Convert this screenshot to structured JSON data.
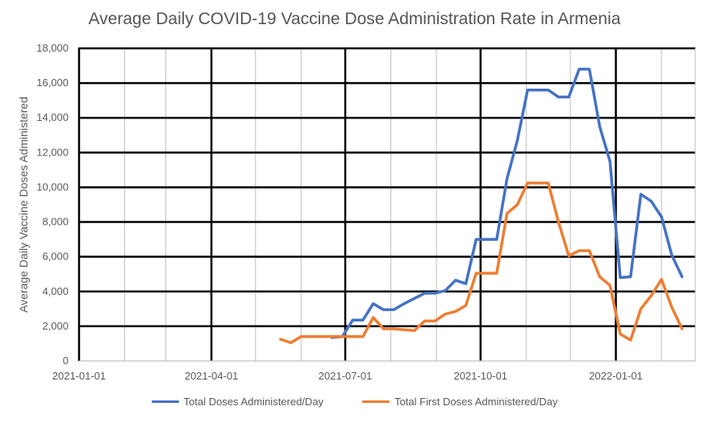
{
  "chart_data": {
    "type": "line",
    "title": "Average Daily COVID-19 Vaccine Dose Administration Rate in Armenia",
    "ylabel": "Average Daily Vaccine Doses Administered",
    "xlabel": "",
    "ylim": [
      0,
      18000
    ],
    "yticks": [
      0,
      2000,
      4000,
      6000,
      8000,
      10000,
      12000,
      14000,
      16000,
      18000
    ],
    "ytick_labels": [
      "0",
      "2,000",
      "4,000",
      "6,000",
      "8,000",
      "10,000",
      "12,000",
      "14,000",
      "16,000",
      "18,000"
    ],
    "xlim": [
      "2021-01-01",
      "2022-02-24"
    ],
    "xticks": [
      "2021-01-01",
      "2021-04-01",
      "2021-07-01",
      "2021-10-01",
      "2022-01-01"
    ],
    "grid": true,
    "legend_position": "bottom",
    "series": [
      {
        "name": "Total Doses Administered/Day",
        "color": "#4472C4",
        "points": [
          [
            "2021-06-22",
            1350
          ],
          [
            "2021-06-29",
            1400
          ],
          [
            "2021-07-06",
            2350
          ],
          [
            "2021-07-13",
            2350
          ],
          [
            "2021-07-20",
            3300
          ],
          [
            "2021-07-27",
            2950
          ],
          [
            "2021-08-03",
            2950
          ],
          [
            "2021-08-10",
            3300
          ],
          [
            "2021-08-17",
            3600
          ],
          [
            "2021-08-24",
            3900
          ],
          [
            "2021-08-31",
            3900
          ],
          [
            "2021-09-07",
            4050
          ],
          [
            "2021-09-14",
            4650
          ],
          [
            "2021-09-21",
            4450
          ],
          [
            "2021-09-28",
            7000
          ],
          [
            "2021-10-05",
            7000
          ],
          [
            "2021-10-12",
            7000
          ],
          [
            "2021-10-19",
            10500
          ],
          [
            "2021-10-26",
            12700
          ],
          [
            "2021-11-02",
            15600
          ],
          [
            "2021-11-09",
            15600
          ],
          [
            "2021-11-16",
            15600
          ],
          [
            "2021-11-23",
            15200
          ],
          [
            "2021-11-30",
            15200
          ],
          [
            "2021-12-07",
            16800
          ],
          [
            "2021-12-14",
            16800
          ],
          [
            "2021-12-21",
            13500
          ],
          [
            "2021-12-28",
            11500
          ],
          [
            "2022-01-04",
            4800
          ],
          [
            "2022-01-11",
            4850
          ],
          [
            "2022-01-18",
            9600
          ],
          [
            "2022-01-25",
            9200
          ],
          [
            "2022-02-01",
            8300
          ],
          [
            "2022-02-08",
            6100
          ],
          [
            "2022-02-15",
            4850
          ]
        ]
      },
      {
        "name": "Total First Doses Administered/Day",
        "color": "#ED7D31",
        "points": [
          [
            "2021-05-18",
            1250
          ],
          [
            "2021-05-25",
            1050
          ],
          [
            "2021-06-01",
            1400
          ],
          [
            "2021-06-08",
            1400
          ],
          [
            "2021-06-15",
            1400
          ],
          [
            "2021-06-22",
            1400
          ],
          [
            "2021-06-29",
            1400
          ],
          [
            "2021-07-06",
            1400
          ],
          [
            "2021-07-13",
            1400
          ],
          [
            "2021-07-20",
            2500
          ],
          [
            "2021-07-27",
            1850
          ],
          [
            "2021-08-03",
            1850
          ],
          [
            "2021-08-10",
            1800
          ],
          [
            "2021-08-17",
            1750
          ],
          [
            "2021-08-24",
            2300
          ],
          [
            "2021-08-31",
            2300
          ],
          [
            "2021-09-07",
            2700
          ],
          [
            "2021-09-14",
            2850
          ],
          [
            "2021-09-21",
            3200
          ],
          [
            "2021-09-28",
            5050
          ],
          [
            "2021-10-05",
            5050
          ],
          [
            "2021-10-12",
            5050
          ],
          [
            "2021-10-19",
            8500
          ],
          [
            "2021-10-26",
            9000
          ],
          [
            "2021-11-02",
            10250
          ],
          [
            "2021-11-09",
            10250
          ],
          [
            "2021-11-16",
            10250
          ],
          [
            "2021-11-23",
            8000
          ],
          [
            "2021-11-30",
            6050
          ],
          [
            "2021-12-07",
            6350
          ],
          [
            "2021-12-14",
            6350
          ],
          [
            "2021-12-21",
            4850
          ],
          [
            "2021-12-28",
            4350
          ],
          [
            "2022-01-04",
            1550
          ],
          [
            "2022-01-11",
            1200
          ],
          [
            "2022-01-18",
            3000
          ],
          [
            "2022-01-25",
            3750
          ],
          [
            "2022-02-01",
            4700
          ],
          [
            "2022-02-08",
            3100
          ],
          [
            "2022-02-15",
            1850
          ]
        ]
      }
    ]
  }
}
